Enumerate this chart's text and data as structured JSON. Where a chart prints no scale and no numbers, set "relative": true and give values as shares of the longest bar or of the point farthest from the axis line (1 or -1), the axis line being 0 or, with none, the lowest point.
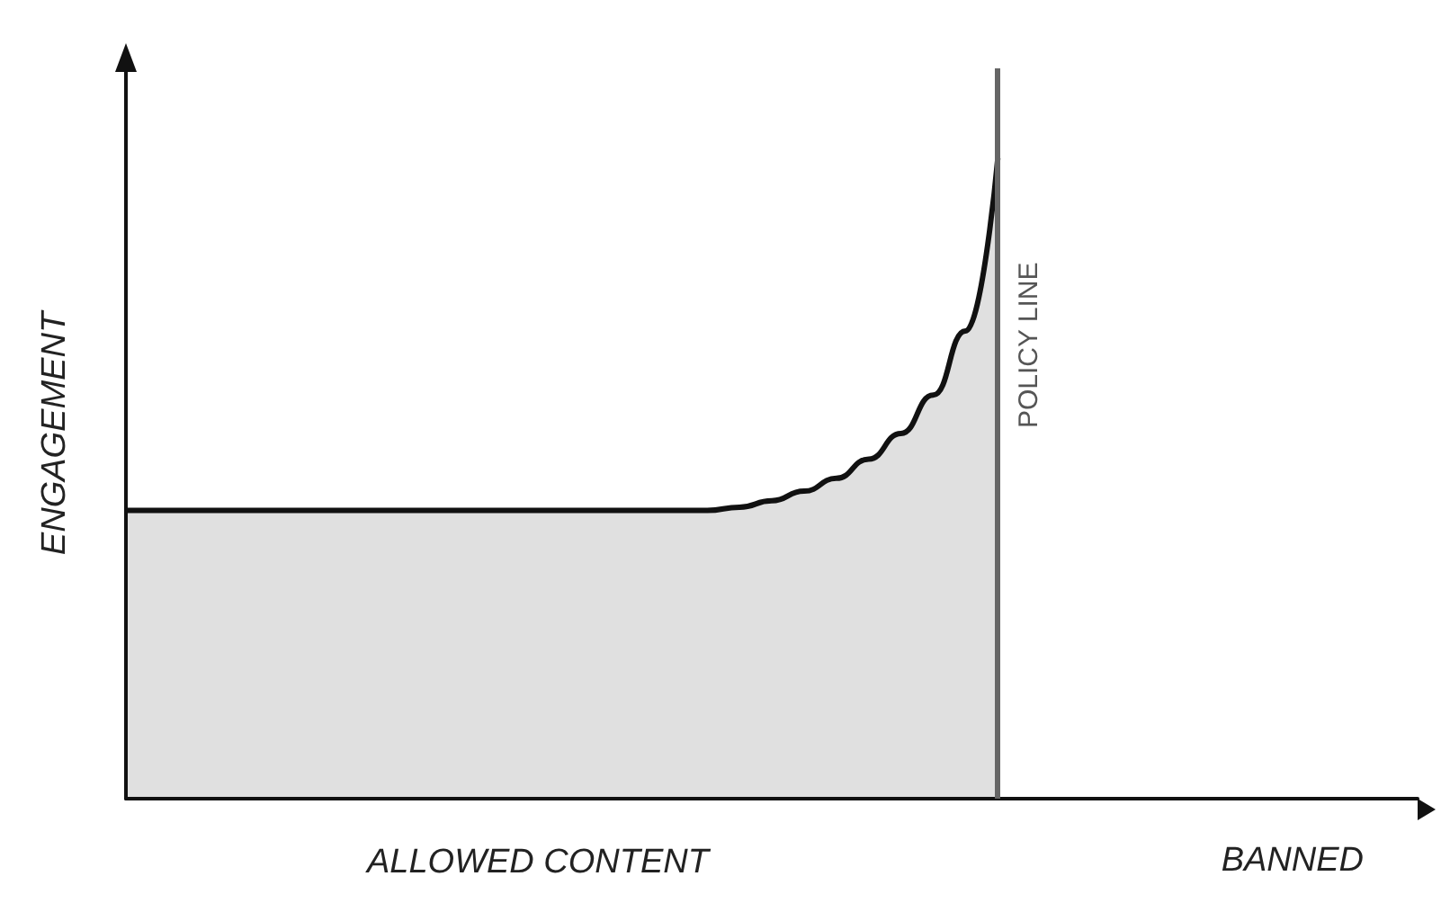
{
  "chart_data": {
    "type": "area",
    "relative": true,
    "xlabel": "ALLOWED CONTENT",
    "ylabel": "ENGAGEMENT",
    "categories": [
      null,
      null,
      null,
      null,
      null,
      null,
      null,
      null,
      null,
      null,
      null,
      null,
      null,
      null,
      null,
      null,
      null,
      null,
      null,
      null,
      null,
      null,
      null,
      null,
      null,
      null,
      null,
      null,
      null,
      null,
      null,
      null,
      null,
      null,
      null,
      null,
      null,
      null,
      null,
      null,
      null
    ],
    "values": [
      0.45,
      0.45,
      0.45,
      0.45,
      0.45,
      0.45,
      0.45,
      0.45,
      0.45,
      0.45,
      0.45,
      0.45,
      0.45,
      0.45,
      0.45,
      0.45,
      0.45,
      0.45,
      0.45,
      0.455,
      0.465,
      0.48,
      0.5,
      0.53,
      0.57,
      0.63,
      0.73,
      1.0,
      null,
      null,
      null,
      null,
      null,
      null,
      null,
      null,
      null,
      null,
      null,
      null,
      null
    ],
    "color": "#111111",
    "annotations": [
      "POLICY LINE",
      "BANNED"
    ],
    "marker": "none"
  }
}
